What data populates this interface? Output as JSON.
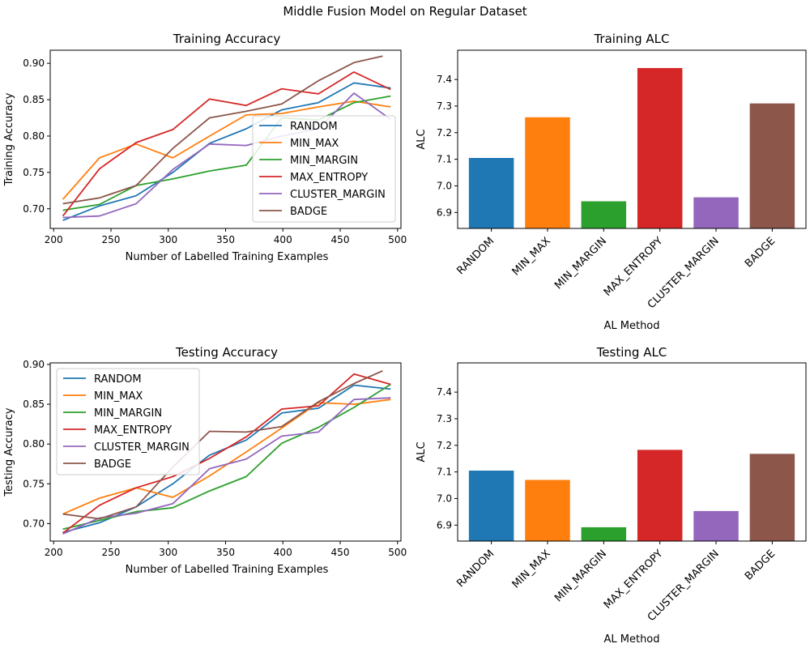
{
  "figure": {
    "title": "Middle Fusion Model on Regular Dataset"
  },
  "colors": {
    "RANDOM": "#1f77b4",
    "MIN_MAX": "#ff7f0e",
    "MIN_MARGIN": "#2ca02c",
    "MAX_ENTROPY": "#d62728",
    "CLUSTER_MARGIN": "#9467bd",
    "BADGE": "#8c564b"
  },
  "chart_data": [
    {
      "id": "train-acc",
      "type": "line",
      "title": "Training Accuracy",
      "xlabel": "Number of Labelled Training Examples",
      "ylabel": "Training Accuracy",
      "xlim": [
        197,
        503
      ],
      "ylim": [
        0.673,
        0.918
      ],
      "xticks": [
        200,
        250,
        300,
        350,
        400,
        450,
        500
      ],
      "yticks": [
        0.7,
        0.75,
        0.8,
        0.85,
        0.9
      ],
      "ytick_labels": [
        "0.70",
        "0.75",
        "0.80",
        "0.85",
        "0.90"
      ],
      "legend": "lower-right",
      "series": [
        {
          "name": "RANDOM",
          "x": [
            208,
            240,
            272,
            304,
            336,
            368,
            399,
            431,
            462,
            494
          ],
          "y": [
            0.684,
            0.704,
            0.718,
            0.75,
            0.79,
            0.81,
            0.836,
            0.846,
            0.873,
            0.866
          ]
        },
        {
          "name": "MIN_MAX",
          "x": [
            208,
            240,
            272,
            304,
            336,
            368,
            399,
            431,
            462,
            494
          ],
          "y": [
            0.713,
            0.77,
            0.789,
            0.77,
            0.8,
            0.829,
            0.831,
            0.84,
            0.848,
            0.84
          ]
        },
        {
          "name": "MIN_MARGIN",
          "x": [
            208,
            240,
            272,
            304,
            336,
            368,
            399,
            431,
            462,
            494
          ],
          "y": [
            0.698,
            0.706,
            0.732,
            0.741,
            0.752,
            0.76,
            0.825,
            0.822,
            0.846,
            0.855
          ]
        },
        {
          "name": "MAX_ENTROPY",
          "x": [
            208,
            240,
            272,
            304,
            336,
            368,
            399,
            431,
            462,
            494
          ],
          "y": [
            0.69,
            0.755,
            0.791,
            0.809,
            0.851,
            0.842,
            0.865,
            0.858,
            0.888,
            0.864
          ]
        },
        {
          "name": "CLUSTER_MARGIN",
          "x": [
            208,
            240,
            272,
            304,
            336,
            368,
            399,
            431,
            462,
            494
          ],
          "y": [
            0.688,
            0.69,
            0.707,
            0.754,
            0.789,
            0.787,
            0.8,
            0.81,
            0.859,
            0.823
          ]
        },
        {
          "name": "BADGE",
          "x": [
            208,
            240,
            272,
            304,
            336,
            368,
            399,
            431,
            462,
            487
          ],
          "y": [
            0.707,
            0.715,
            0.732,
            0.783,
            0.825,
            0.834,
            0.844,
            0.876,
            0.901,
            0.91
          ]
        }
      ]
    },
    {
      "id": "train-alc",
      "type": "bar",
      "title": "Training ALC",
      "xlabel": "AL Method",
      "ylabel": "ALC",
      "ylim": [
        6.84,
        7.51
      ],
      "yticks": [
        6.9,
        7.0,
        7.1,
        7.2,
        7.3,
        7.4
      ],
      "ytick_labels": [
        "6.9",
        "7.0",
        "7.1",
        "7.2",
        "7.3",
        "7.4"
      ],
      "categories": [
        "RANDOM",
        "MIN_MAX",
        "MIN_MARGIN",
        "MAX_ENTROPY",
        "CLUSTER_MARGIN",
        "BADGE"
      ],
      "values": [
        7.105,
        7.258,
        6.942,
        7.443,
        6.957,
        7.31
      ]
    },
    {
      "id": "test-acc",
      "type": "line",
      "title": "Testing Accuracy",
      "xlabel": "Number of Labelled Training Examples",
      "ylabel": "Testing Accuracy",
      "xlim": [
        197,
        503
      ],
      "ylim": [
        0.678,
        0.902
      ],
      "xticks": [
        200,
        250,
        300,
        350,
        400,
        450,
        500
      ],
      "yticks": [
        0.7,
        0.75,
        0.8,
        0.85,
        0.9
      ],
      "ytick_labels": [
        "0.70",
        "0.75",
        "0.80",
        "0.85",
        "0.90"
      ],
      "legend": "upper-left",
      "series": [
        {
          "name": "RANDOM",
          "x": [
            208,
            240,
            272,
            304,
            336,
            368,
            399,
            431,
            462,
            494
          ],
          "y": [
            0.689,
            0.701,
            0.721,
            0.75,
            0.786,
            0.805,
            0.839,
            0.845,
            0.874,
            0.869
          ]
        },
        {
          "name": "MIN_MAX",
          "x": [
            208,
            240,
            272,
            304,
            336,
            368,
            399,
            431,
            462,
            494
          ],
          "y": [
            0.712,
            0.732,
            0.745,
            0.733,
            0.76,
            0.79,
            0.82,
            0.852,
            0.85,
            0.856
          ]
        },
        {
          "name": "MIN_MARGIN",
          "x": [
            208,
            240,
            272,
            304,
            336,
            368,
            399,
            431,
            462,
            494
          ],
          "y": [
            0.693,
            0.704,
            0.715,
            0.72,
            0.741,
            0.759,
            0.801,
            0.821,
            0.846,
            0.875
          ]
        },
        {
          "name": "MAX_ENTROPY",
          "x": [
            208,
            240,
            272,
            304,
            336,
            368,
            399,
            431,
            462,
            494
          ],
          "y": [
            0.688,
            0.723,
            0.745,
            0.759,
            0.782,
            0.809,
            0.844,
            0.848,
            0.888,
            0.875
          ]
        },
        {
          "name": "CLUSTER_MARGIN",
          "x": [
            208,
            240,
            272,
            304,
            336,
            368,
            399,
            431,
            462,
            494
          ],
          "y": [
            0.687,
            0.707,
            0.713,
            0.725,
            0.769,
            0.781,
            0.81,
            0.815,
            0.856,
            0.858
          ]
        },
        {
          "name": "BADGE",
          "x": [
            208,
            240,
            272,
            304,
            336,
            368,
            399,
            431,
            462,
            487
          ],
          "y": [
            0.712,
            0.706,
            0.721,
            0.771,
            0.816,
            0.815,
            0.822,
            0.853,
            0.876,
            0.892
          ]
        }
      ]
    },
    {
      "id": "test-alc",
      "type": "bar",
      "title": "Testing ALC",
      "xlabel": "AL Method",
      "ylabel": "ALC",
      "ylim": [
        6.84,
        7.51
      ],
      "yticks": [
        6.9,
        7.0,
        7.1,
        7.2,
        7.3,
        7.4
      ],
      "ytick_labels": [
        "6.9",
        "7.0",
        "7.1",
        "7.2",
        "7.3",
        "7.4"
      ],
      "categories": [
        "RANDOM",
        "MIN_MAX",
        "MIN_MARGIN",
        "MAX_ENTROPY",
        "CLUSTER_MARGIN",
        "BADGE"
      ],
      "values": [
        7.105,
        7.07,
        6.892,
        7.183,
        6.953,
        7.168
      ]
    }
  ]
}
